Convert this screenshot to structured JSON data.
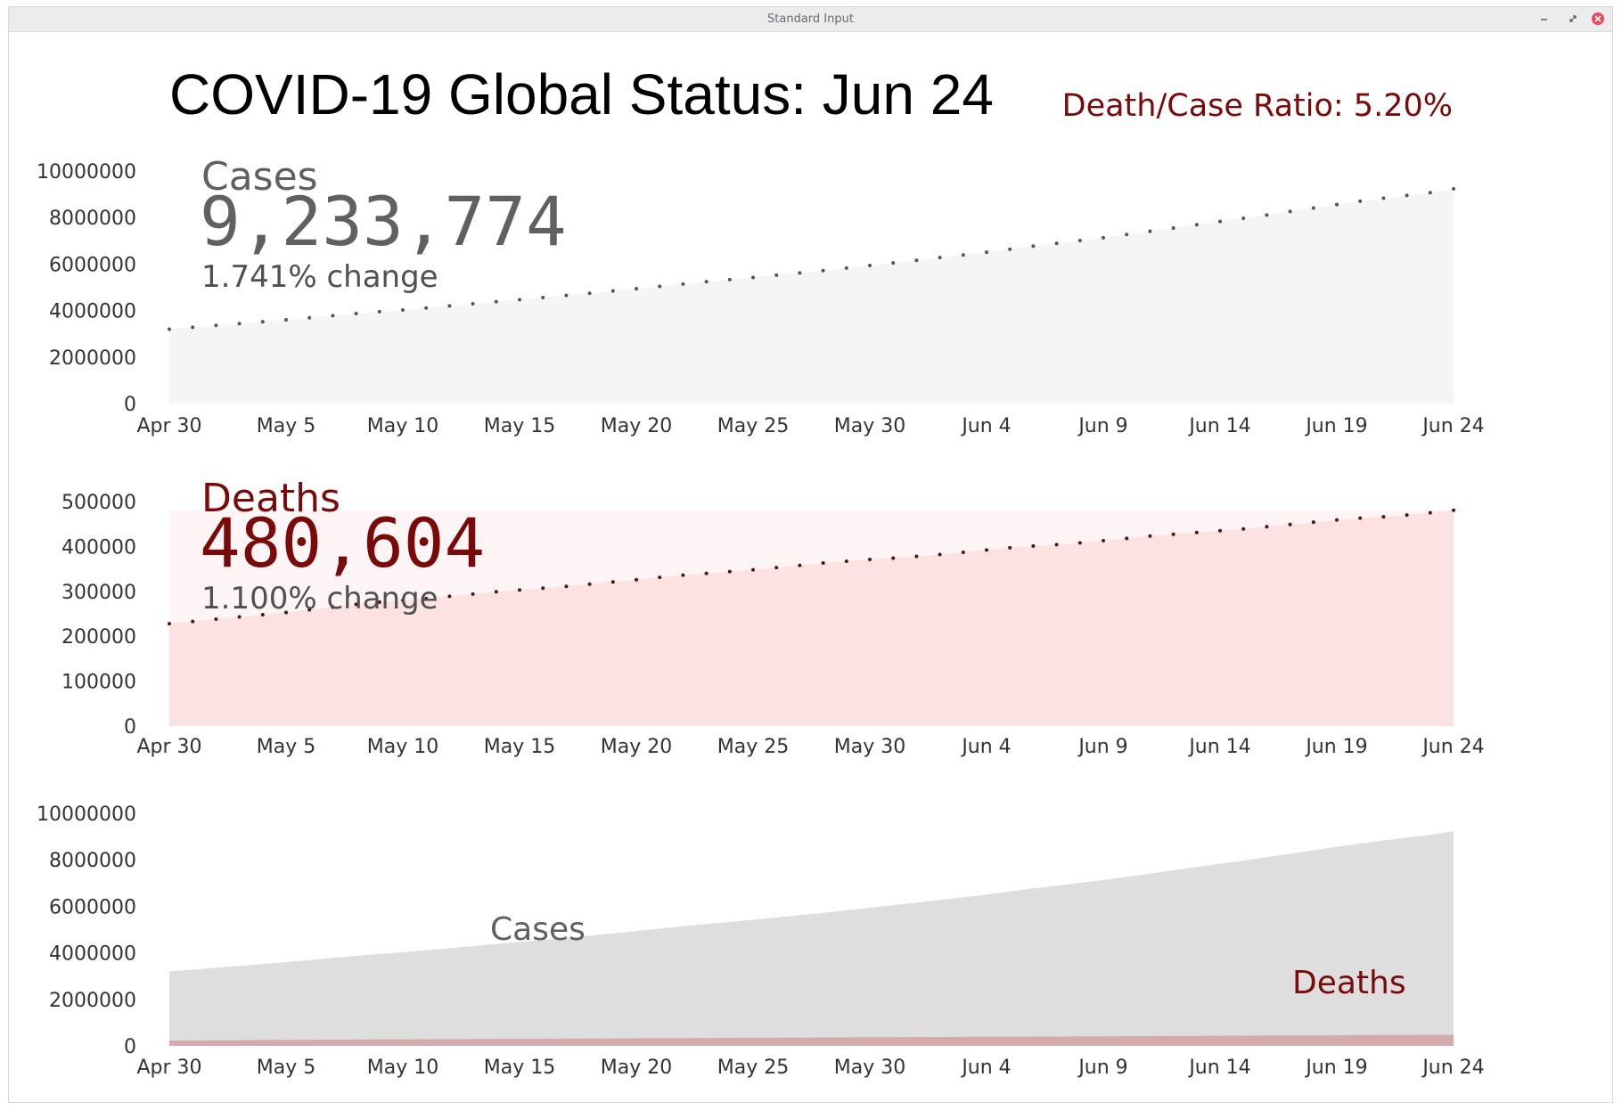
{
  "window": {
    "title": "Standard Input"
  },
  "header": {
    "title": "COVID-19 Global Status: Jun 24",
    "ratio": "Death/Case Ratio: 5.20%"
  },
  "panels": {
    "cases": {
      "label": "Cases",
      "total": "9,233,774",
      "change": "1.741% change"
    },
    "deaths": {
      "label": "Deaths",
      "total": "480,604",
      "change": "1.100% change"
    },
    "combined": {
      "cases_label": "Cases",
      "deaths_label": "Deaths"
    }
  },
  "colors": {
    "cases_fill": "#f5f5f5",
    "cases_dots": "#555555",
    "cases_text": "#606060",
    "deaths_fill": "#fde2e2",
    "deaths_band": "#fdf5f5",
    "deaths_dots": "#5a1010",
    "deaths_text": "#7a0a0a",
    "combined_cases": "#dedede",
    "combined_deaths": "#d4aaaa",
    "close_button": "#e84a5a"
  },
  "chart_data": [
    {
      "type": "area",
      "name": "cases-chart",
      "x": [
        "Apr 30",
        "May 1",
        "May 2",
        "May 3",
        "May 4",
        "May 5",
        "May 6",
        "May 7",
        "May 8",
        "May 9",
        "May 10",
        "May 11",
        "May 12",
        "May 13",
        "May 14",
        "May 15",
        "May 16",
        "May 17",
        "May 18",
        "May 19",
        "May 20",
        "May 21",
        "May 22",
        "May 23",
        "May 24",
        "May 25",
        "May 26",
        "May 27",
        "May 28",
        "May 29",
        "May 30",
        "May 31",
        "Jun 1",
        "Jun 2",
        "Jun 3",
        "Jun 4",
        "Jun 5",
        "Jun 6",
        "Jun 7",
        "Jun 8",
        "Jun 9",
        "Jun 10",
        "Jun 11",
        "Jun 12",
        "Jun 13",
        "Jun 14",
        "Jun 15",
        "Jun 16",
        "Jun 17",
        "Jun 18",
        "Jun 19",
        "Jun 20",
        "Jun 21",
        "Jun 22",
        "Jun 23",
        "Jun 24"
      ],
      "x_tick_labels": [
        "Apr 30",
        "May 5",
        "May 10",
        "May 15",
        "May 20",
        "May 25",
        "May 30",
        "Jun 4",
        "Jun 9",
        "Jun 14",
        "Jun 19",
        "Jun 24"
      ],
      "values": [
        3200000,
        3280000,
        3360000,
        3440000,
        3520000,
        3600000,
        3690000,
        3780000,
        3870000,
        3950000,
        4030000,
        4110000,
        4200000,
        4290000,
        4380000,
        4470000,
        4560000,
        4650000,
        4740000,
        4840000,
        4940000,
        5040000,
        5140000,
        5240000,
        5330000,
        5420000,
        5520000,
        5620000,
        5720000,
        5830000,
        5940000,
        6050000,
        6160000,
        6280000,
        6390000,
        6510000,
        6640000,
        6770000,
        6890000,
        7010000,
        7130000,
        7270000,
        7410000,
        7550000,
        7690000,
        7830000,
        7970000,
        8110000,
        8260000,
        8410000,
        8560000,
        8700000,
        8830000,
        8950000,
        9070000,
        9233774
      ],
      "ylim": [
        0,
        10000000
      ],
      "y_ticks": [
        0,
        2000000,
        4000000,
        6000000,
        8000000,
        10000000
      ],
      "markers": "dots"
    },
    {
      "type": "area",
      "name": "deaths-chart",
      "x": [
        "Apr 30",
        "May 1",
        "May 2",
        "May 3",
        "May 4",
        "May 5",
        "May 6",
        "May 7",
        "May 8",
        "May 9",
        "May 10",
        "May 11",
        "May 12",
        "May 13",
        "May 14",
        "May 15",
        "May 16",
        "May 17",
        "May 18",
        "May 19",
        "May 20",
        "May 21",
        "May 22",
        "May 23",
        "May 24",
        "May 25",
        "May 26",
        "May 27",
        "May 28",
        "May 29",
        "May 30",
        "May 31",
        "Jun 1",
        "Jun 2",
        "Jun 3",
        "Jun 4",
        "Jun 5",
        "Jun 6",
        "Jun 7",
        "Jun 8",
        "Jun 9",
        "Jun 10",
        "Jun 11",
        "Jun 12",
        "Jun 13",
        "Jun 14",
        "Jun 15",
        "Jun 16",
        "Jun 17",
        "Jun 18",
        "Jun 19",
        "Jun 20",
        "Jun 21",
        "Jun 22",
        "Jun 23",
        "Jun 24"
      ],
      "x_tick_labels": [
        "Apr 30",
        "May 5",
        "May 10",
        "May 15",
        "May 20",
        "May 25",
        "May 30",
        "Jun 4",
        "Jun 9",
        "Jun 14",
        "Jun 19",
        "Jun 24"
      ],
      "values": [
        228000,
        233000,
        238000,
        243000,
        248000,
        253000,
        259000,
        265000,
        271000,
        276000,
        280000,
        284000,
        289000,
        294000,
        299000,
        303000,
        307000,
        311000,
        316000,
        321000,
        326000,
        331000,
        336000,
        340000,
        344000,
        348000,
        353000,
        358000,
        363000,
        367000,
        371000,
        374000,
        378000,
        382000,
        387000,
        392000,
        397000,
        401000,
        404000,
        408000,
        413000,
        418000,
        423000,
        427000,
        431000,
        435000,
        439000,
        444000,
        449000,
        454000,
        459000,
        463000,
        466000,
        470000,
        475000,
        480604
      ],
      "ylim": [
        0,
        500000
      ],
      "y_ticks": [
        0,
        100000,
        200000,
        300000,
        400000,
        500000
      ],
      "band_upper": 480604,
      "markers": "dots"
    },
    {
      "type": "area",
      "name": "combined-chart",
      "x": [
        "Apr 30",
        "May 1",
        "May 2",
        "May 3",
        "May 4",
        "May 5",
        "May 6",
        "May 7",
        "May 8",
        "May 9",
        "May 10",
        "May 11",
        "May 12",
        "May 13",
        "May 14",
        "May 15",
        "May 16",
        "May 17",
        "May 18",
        "May 19",
        "May 20",
        "May 21",
        "May 22",
        "May 23",
        "May 24",
        "May 25",
        "May 26",
        "May 27",
        "May 28",
        "May 29",
        "May 30",
        "May 31",
        "Jun 1",
        "Jun 2",
        "Jun 3",
        "Jun 4",
        "Jun 5",
        "Jun 6",
        "Jun 7",
        "Jun 8",
        "Jun 9",
        "Jun 10",
        "Jun 11",
        "Jun 12",
        "Jun 13",
        "Jun 14",
        "Jun 15",
        "Jun 16",
        "Jun 17",
        "Jun 18",
        "Jun 19",
        "Jun 20",
        "Jun 21",
        "Jun 22",
        "Jun 23",
        "Jun 24"
      ],
      "x_tick_labels": [
        "Apr 30",
        "May 5",
        "May 10",
        "May 15",
        "May 20",
        "May 25",
        "May 30",
        "Jun 4",
        "Jun 9",
        "Jun 14",
        "Jun 19",
        "Jun 24"
      ],
      "ylim": [
        0,
        10000000
      ],
      "y_ticks": [
        0,
        2000000,
        4000000,
        6000000,
        8000000,
        10000000
      ],
      "series": [
        {
          "name": "Cases",
          "values": [
            3200000,
            3280000,
            3360000,
            3440000,
            3520000,
            3600000,
            3690000,
            3780000,
            3870000,
            3950000,
            4030000,
            4110000,
            4200000,
            4290000,
            4380000,
            4470000,
            4560000,
            4650000,
            4740000,
            4840000,
            4940000,
            5040000,
            5140000,
            5240000,
            5330000,
            5420000,
            5520000,
            5620000,
            5720000,
            5830000,
            5940000,
            6050000,
            6160000,
            6280000,
            6390000,
            6510000,
            6640000,
            6770000,
            6890000,
            7010000,
            7130000,
            7270000,
            7410000,
            7550000,
            7690000,
            7830000,
            7970000,
            8110000,
            8260000,
            8410000,
            8560000,
            8700000,
            8830000,
            8950000,
            9070000,
            9233774
          ]
        },
        {
          "name": "Deaths",
          "values": [
            228000,
            233000,
            238000,
            243000,
            248000,
            253000,
            259000,
            265000,
            271000,
            276000,
            280000,
            284000,
            289000,
            294000,
            299000,
            303000,
            307000,
            311000,
            316000,
            321000,
            326000,
            331000,
            336000,
            340000,
            344000,
            348000,
            353000,
            358000,
            363000,
            367000,
            371000,
            374000,
            378000,
            382000,
            387000,
            392000,
            397000,
            401000,
            404000,
            408000,
            413000,
            418000,
            423000,
            427000,
            431000,
            435000,
            439000,
            444000,
            449000,
            454000,
            459000,
            463000,
            466000,
            470000,
            475000,
            480604
          ]
        }
      ]
    }
  ]
}
